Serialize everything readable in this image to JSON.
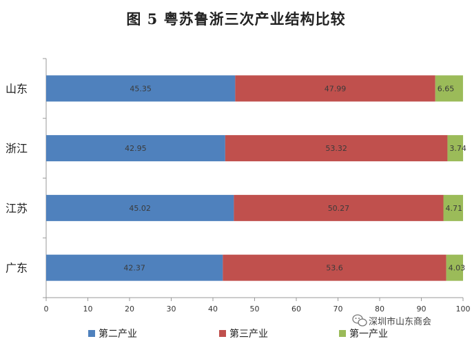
{
  "chart_data": {
    "type": "bar",
    "orientation": "horizontal",
    "stacked": true,
    "title": "图 5  粤苏鲁浙三次产业结构比较",
    "categories": [
      "山东",
      "浙江",
      "江苏",
      "广东"
    ],
    "series": [
      {
        "name": "第二产业",
        "color": "#4f81bd",
        "values": [
          45.35,
          42.95,
          45.02,
          42.37
        ]
      },
      {
        "name": "第三产业",
        "color": "#c0504d",
        "values": [
          47.99,
          53.32,
          50.27,
          53.6
        ]
      },
      {
        "name": "第一产业",
        "color": "#9bbb59",
        "values": [
          6.65,
          3.74,
          4.71,
          4.03
        ]
      }
    ],
    "data_labels": [
      [
        "45.35",
        "47.99",
        "6.65"
      ],
      [
        "42.95",
        "53.32",
        "3.74"
      ],
      [
        "45.02",
        "50.27",
        "4.71"
      ],
      [
        "42.37",
        "53.6",
        "4.03"
      ]
    ],
    "xlim": [
      0,
      100
    ],
    "xticks": [
      "0",
      "10",
      "20",
      "30",
      "40",
      "50",
      "60",
      "70",
      "80",
      "90",
      "100"
    ],
    "grid": false,
    "legend_position": "bottom"
  },
  "watermark": {
    "text": "深圳市山东商会",
    "icon": "wechat-icon"
  }
}
